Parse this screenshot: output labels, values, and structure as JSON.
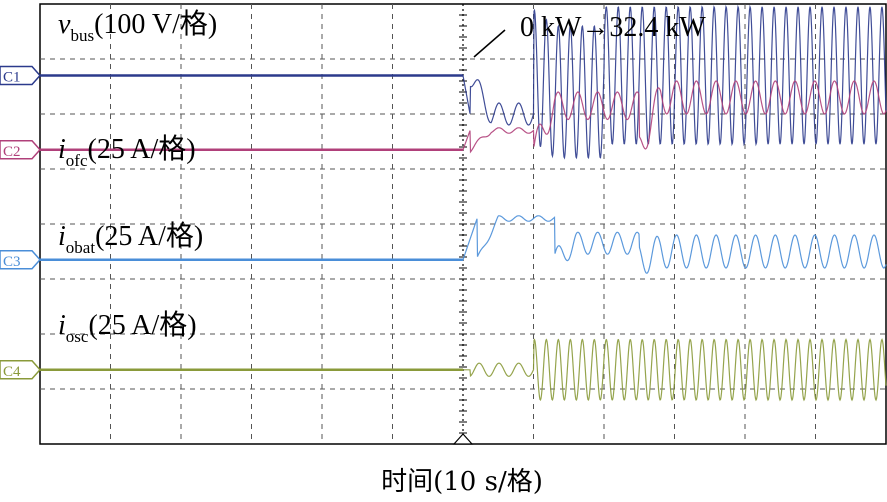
{
  "chart_data": {
    "type": "line",
    "title": "",
    "xlabel": "时间(10 s/格)",
    "annotation": "0 kW→32.4 kW",
    "grid": true,
    "x_divisions": 12,
    "y_divisions": 8,
    "trigger_division": 6,
    "series": [
      {
        "name": "C1",
        "symbol": "v",
        "subscript": "bus",
        "scale": "(100 V/格)",
        "color": "#2b3a8c",
        "baseline_div": 1.3,
        "segments": [
          {
            "t": [
              0,
              6
            ],
            "mean_div": 0,
            "amp_div": 0
          },
          {
            "t": [
              6.1,
              7.0
            ],
            "mean_div": -0.7,
            "amp_div": 0.2
          },
          {
            "t": [
              7.0,
              8.0
            ],
            "mean_div": -0.3,
            "amp_div": 1.2
          },
          {
            "t": [
              8.0,
              12
            ],
            "mean_div": 0.0,
            "amp_div": 1.25
          }
        ]
      },
      {
        "name": "C2",
        "symbol": "i",
        "subscript": "ofc",
        "scale": "(25 A/格)",
        "color": "#b0407a",
        "baseline_div": 2.65,
        "segments": [
          {
            "t": [
              0,
              6
            ],
            "mean_div": 0,
            "amp_div": 0
          },
          {
            "t": [
              6.1,
              7.0
            ],
            "mean_div": 0.35,
            "amp_div": 0.05
          },
          {
            "t": [
              7.0,
              8.5
            ],
            "mean_div": 0.8,
            "amp_div": 0.25
          },
          {
            "t": [
              8.5,
              12
            ],
            "mean_div": 0.95,
            "amp_div": 0.3
          }
        ]
      },
      {
        "name": "C3",
        "symbol": "i",
        "subscript": "obat",
        "scale": "(25 A/格)",
        "color": "#4a8ed8",
        "baseline_div": 4.65,
        "segments": [
          {
            "t": [
              0,
              6
            ],
            "mean_div": 0,
            "amp_div": 0
          },
          {
            "t": [
              6.2,
              7.3
            ],
            "mean_div": 0.75,
            "amp_div": 0.05
          },
          {
            "t": [
              7.3,
              8.5
            ],
            "mean_div": 0.3,
            "amp_div": 0.2
          },
          {
            "t": [
              8.5,
              12
            ],
            "mean_div": 0.15,
            "amp_div": 0.3
          }
        ]
      },
      {
        "name": "C4",
        "symbol": "i",
        "subscript": "osc",
        "scale": "(25 A/格)",
        "color": "#8a9a3a",
        "baseline_div": 6.65,
        "segments": [
          {
            "t": [
              0,
              6
            ],
            "mean_div": 0,
            "amp_div": 0
          },
          {
            "t": [
              6.1,
              7.0
            ],
            "mean_div": 0.0,
            "amp_div": 0.12
          },
          {
            "t": [
              7.0,
              12
            ],
            "mean_div": 0.0,
            "amp_div": 0.55
          }
        ]
      }
    ]
  }
}
